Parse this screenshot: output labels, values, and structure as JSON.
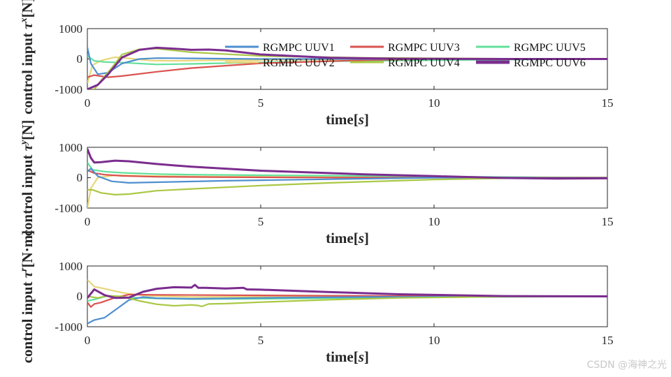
{
  "watermark": "CSDN @海神之光",
  "chart_data": [
    {
      "type": "line",
      "xlabel_parts": [
        "time",
        "[",
        "s",
        "]"
      ],
      "ylabel_parts": [
        "control input ",
        "τ",
        "x",
        "[N]"
      ],
      "xlim": [
        0,
        15
      ],
      "ylim": [
        -1000,
        1000
      ],
      "xticks": [
        "0",
        "5",
        "10",
        "15"
      ],
      "yticks": [
        "-1000",
        "0",
        "1000"
      ],
      "legend": {
        "placement": "top-right",
        "entries": [
          "RGMPC UUV1",
          "RGMPC UUV3",
          "RGMPC UUV5",
          "RGMPC UUV2",
          "RGMPC UUV4",
          "RGMPC UUV6"
        ]
      },
      "series": [
        {
          "name": "RGMPC UUV1",
          "color": "#4f8fd0",
          "x": [
            0,
            0.1,
            0.3,
            0.6,
            1.0,
            1.5,
            2.0,
            3,
            5,
            8,
            11,
            15
          ],
          "values": [
            380,
            -150,
            -500,
            -450,
            -150,
            0,
            30,
            20,
            0,
            0,
            0,
            0
          ]
        },
        {
          "name": "RGMPC UUV2",
          "color": "#e8d67a",
          "x": [
            0,
            0.15,
            0.4,
            0.8,
            1.2,
            1.8,
            2.5,
            4,
            7,
            10,
            15
          ],
          "values": [
            -800,
            -200,
            -50,
            60,
            20,
            -50,
            -60,
            -40,
            -20,
            -10,
            0
          ]
        },
        {
          "name": "RGMPC UUV3",
          "color": "#d9534f",
          "x": [
            0,
            0.2,
            0.6,
            1.0,
            2.0,
            3.0,
            5,
            8,
            10,
            15
          ],
          "values": [
            -600,
            -530,
            -600,
            -560,
            -420,
            -300,
            -140,
            -40,
            0,
            0
          ]
        },
        {
          "name": "RGMPC UUV4",
          "color": "#aac845",
          "x": [
            0,
            0.2,
            0.4,
            0.7,
            1.0,
            1.5,
            2.0,
            3,
            5,
            8,
            12,
            15
          ],
          "values": [
            -1000,
            -1000,
            -700,
            -300,
            150,
            320,
            340,
            220,
            100,
            40,
            10,
            0
          ]
        },
        {
          "name": "RGMPC UUV5",
          "color": "#62e09b",
          "x": [
            0,
            0.2,
            0.5,
            1.0,
            2,
            3,
            5,
            8,
            12,
            15
          ],
          "values": [
            100,
            -60,
            -100,
            -120,
            -180,
            -160,
            -110,
            -60,
            -20,
            0
          ]
        },
        {
          "name": "RGMPC UUV6",
          "color": "#7b2d8e",
          "x": [
            0,
            0.3,
            0.6,
            1.0,
            1.5,
            2.0,
            2.5,
            3.0,
            3.5,
            4,
            5,
            7,
            9,
            12,
            15
          ],
          "values": [
            -1000,
            -850,
            -500,
            50,
            300,
            370,
            340,
            300,
            310,
            280,
            150,
            40,
            10,
            0,
            0
          ]
        }
      ]
    },
    {
      "type": "line",
      "xlabel_parts": [
        "time",
        "[",
        "s",
        "]"
      ],
      "ylabel_parts": [
        "control input ",
        "τ",
        "y",
        "[N]"
      ],
      "xlim": [
        0,
        15
      ],
      "ylim": [
        -1000,
        1000
      ],
      "xticks": [
        "0",
        "5",
        "10",
        "15"
      ],
      "yticks": [
        "-1000",
        "0",
        "1000"
      ],
      "series": [
        {
          "name": "RGMPC UUV1",
          "color": "#4f8fd0",
          "x": [
            0,
            0.1,
            0.3,
            0.7,
            1.2,
            2,
            4,
            7,
            10,
            15
          ],
          "values": [
            200,
            300,
            50,
            -120,
            -170,
            -150,
            -100,
            -50,
            0,
            0
          ]
        },
        {
          "name": "RGMPC UUV2",
          "color": "#e8d67a",
          "x": [
            0,
            0.1,
            0.3,
            0.8,
            1.5,
            3,
            6,
            10,
            15
          ],
          "values": [
            -1000,
            -350,
            0,
            80,
            60,
            40,
            20,
            10,
            0
          ]
        },
        {
          "name": "RGMPC UUV3",
          "color": "#d9534f",
          "x": [
            0,
            0.2,
            0.5,
            1.0,
            2,
            4,
            7,
            10,
            15
          ],
          "values": [
            250,
            150,
            100,
            60,
            30,
            15,
            5,
            0,
            0
          ]
        },
        {
          "name": "RGMPC UUV4",
          "color": "#aac845",
          "x": [
            0,
            0.15,
            0.4,
            0.8,
            1.2,
            2,
            3,
            5,
            7,
            10,
            13,
            15
          ],
          "values": [
            -400,
            -400,
            -500,
            -560,
            -540,
            -430,
            -370,
            -260,
            -170,
            -60,
            0,
            0
          ]
        },
        {
          "name": "RGMPC UUV5",
          "color": "#62e09b",
          "x": [
            0,
            0.15,
            0.5,
            1.0,
            2,
            3,
            5,
            8,
            10,
            12,
            15
          ],
          "values": [
            500,
            260,
            200,
            160,
            120,
            100,
            80,
            60,
            40,
            20,
            0
          ]
        },
        {
          "name": "RGMPC UUV6",
          "color": "#7b2d8e",
          "x": [
            0,
            0.1,
            0.2,
            0.4,
            0.8,
            1.2,
            2,
            3,
            5,
            8,
            10,
            12,
            13.5,
            15
          ],
          "values": [
            950,
            650,
            500,
            510,
            560,
            540,
            450,
            360,
            230,
            110,
            50,
            -10,
            -30,
            -20
          ]
        }
      ]
    },
    {
      "type": "line",
      "xlabel_parts": [
        "time",
        "[",
        "s",
        "]"
      ],
      "ylabel_parts": [
        "control input ",
        "τ",
        "r",
        "[N·m]"
      ],
      "xlim": [
        0,
        15
      ],
      "ylim": [
        -1000,
        1000
      ],
      "xticks": [
        "0",
        "5",
        "10",
        "15"
      ],
      "yticks": [
        "-1000",
        "0",
        "1000"
      ],
      "series": [
        {
          "name": "RGMPC UUV1",
          "color": "#4f8fd0",
          "x": [
            0,
            0.2,
            0.5,
            0.8,
            1.2,
            1.6,
            2,
            3,
            5,
            8,
            15
          ],
          "values": [
            -900,
            -780,
            -700,
            -450,
            -120,
            -20,
            -60,
            -80,
            -50,
            -20,
            0
          ]
        },
        {
          "name": "RGMPC UUV2",
          "color": "#e8d67a",
          "x": [
            0,
            0.2,
            0.5,
            0.8,
            1.2,
            1.8,
            3,
            5,
            8,
            12,
            15
          ],
          "values": [
            550,
            320,
            250,
            170,
            80,
            20,
            -20,
            -10,
            0,
            0,
            0
          ]
        },
        {
          "name": "RGMPC UUV3",
          "color": "#d9534f",
          "x": [
            0,
            0.1,
            0.2,
            0.4,
            0.8,
            1.2,
            2,
            4,
            7,
            10,
            15
          ],
          "values": [
            -200,
            -350,
            -250,
            -200,
            -40,
            60,
            50,
            40,
            20,
            5,
            0
          ]
        },
        {
          "name": "RGMPC UUV4",
          "color": "#aac845",
          "x": [
            0,
            0.3,
            0.6,
            1.0,
            1.5,
            2.0,
            2.5,
            3.0,
            3.2,
            3.3,
            3.5,
            4,
            5,
            7,
            9,
            12,
            15
          ],
          "values": [
            0,
            -50,
            20,
            0,
            -150,
            -260,
            -310,
            -280,
            -300,
            -330,
            -250,
            -240,
            -190,
            -110,
            -50,
            -10,
            0
          ]
        },
        {
          "name": "RGMPC UUV5",
          "color": "#62e09b",
          "x": [
            0,
            0.2,
            0.6,
            1.2,
            2,
            3,
            5,
            8,
            11,
            15
          ],
          "values": [
            -150,
            -100,
            20,
            -40,
            -70,
            -90,
            -80,
            -50,
            -20,
            0
          ]
        },
        {
          "name": "RGMPC UUV6",
          "color": "#7b2d8e",
          "x": [
            0,
            0.2,
            0.5,
            0.8,
            1.2,
            1.6,
            2,
            2.5,
            3.0,
            3.1,
            3.2,
            3.4,
            4,
            4.5,
            4.6,
            5,
            7,
            9,
            12,
            15
          ],
          "values": [
            -50,
            230,
            40,
            -50,
            -40,
            150,
            250,
            300,
            290,
            380,
            280,
            280,
            260,
            280,
            230,
            220,
            140,
            70,
            10,
            0
          ]
        }
      ]
    }
  ]
}
